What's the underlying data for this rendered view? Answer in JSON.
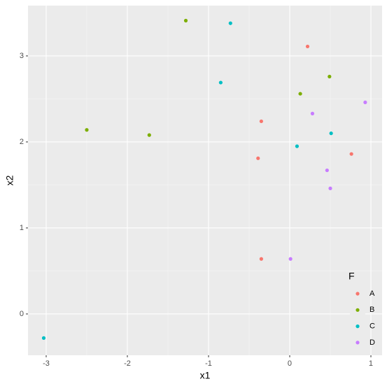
{
  "chart_data": {
    "type": "scatter",
    "x_label": "x1",
    "y_label": "x2",
    "legend_title": "F",
    "xlim": [
      -3.224,
      1.138
    ],
    "ylim": [
      -0.48,
      3.585
    ],
    "xticks": [
      -3,
      -2,
      -1,
      0,
      1
    ],
    "yticks": [
      0,
      1,
      2,
      3
    ],
    "grid": true,
    "legend": "bottom-right",
    "series": [
      {
        "name": "A",
        "color": "#F8766D",
        "x": [
          0.22,
          -0.35,
          -0.39,
          0.76,
          -0.35
        ],
        "values": [
          3.11,
          2.24,
          1.81,
          1.86,
          0.64
        ]
      },
      {
        "name": "B",
        "color": "#7CAE00",
        "x": [
          -1.28,
          0.49,
          0.13,
          -2.5,
          -1.73
        ],
        "values": [
          3.41,
          2.76,
          2.56,
          2.14,
          2.08
        ]
      },
      {
        "name": "C",
        "color": "#00BFC4",
        "x": [
          -0.73,
          -0.85,
          0.51,
          0.09,
          -3.03
        ],
        "values": [
          3.38,
          2.69,
          2.1,
          1.95,
          -0.28
        ]
      },
      {
        "name": "D",
        "color": "#C77CFF",
        "x": [
          0.93,
          0.28,
          0.46,
          0.5,
          0.01
        ],
        "values": [
          2.46,
          2.33,
          1.67,
          1.46,
          0.64
        ]
      }
    ]
  }
}
